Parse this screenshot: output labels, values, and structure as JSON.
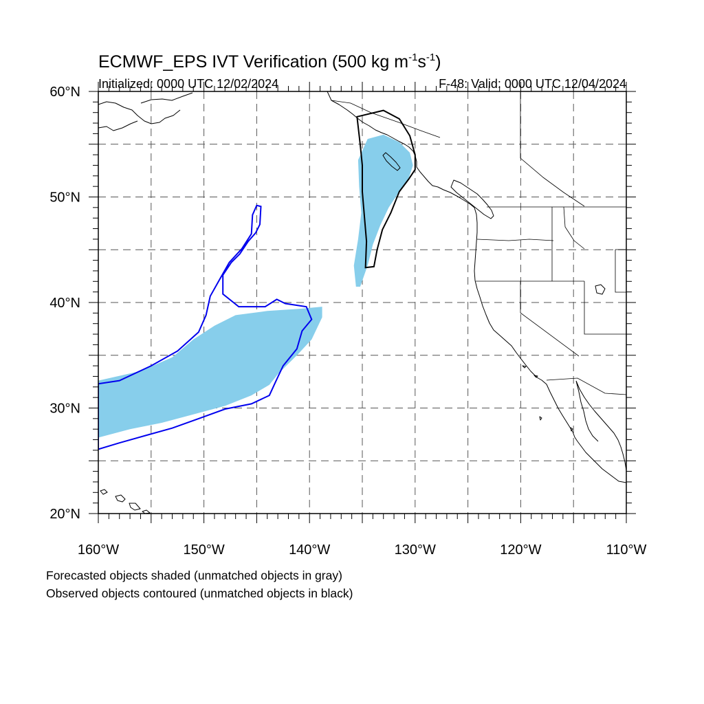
{
  "title_main": "ECMWF_EPS IVT Verification (500 kg m",
  "title_sup1": "-1",
  "title_mid": "s",
  "title_sup2": "-1",
  "title_end": ")",
  "initialized": "Initialized: 0000 UTC 12/02/2024",
  "valid": "F-48: Valid: 0000 UTC 12/04/2024",
  "legend_forecast": "Forecasted objects shaded (unmatched objects in gray)",
  "legend_observed": "Observed objects contoured (unmatched objects in black)",
  "colors": {
    "matched_forecast": "#87ceeb",
    "matched_observed": "#0000ee",
    "unmatched_observed": "#000000",
    "grid": "#555555"
  },
  "map": {
    "lon_range": [
      -160,
      -110
    ],
    "lat_range": [
      20,
      60
    ],
    "lon_ticks": [
      {
        "value": -160,
        "label": "160°W"
      },
      {
        "value": -150,
        "label": "150°W"
      },
      {
        "value": -140,
        "label": "140°W"
      },
      {
        "value": -130,
        "label": "130°W"
      },
      {
        "value": -120,
        "label": "120°W"
      },
      {
        "value": -110,
        "label": "110°W"
      }
    ],
    "lat_ticks": [
      {
        "value": 60,
        "label": "60°N"
      },
      {
        "value": 50,
        "label": "50°N"
      },
      {
        "value": 40,
        "label": "40°N"
      },
      {
        "value": 30,
        "label": "30°N"
      },
      {
        "value": 20,
        "label": "20°N"
      }
    ],
    "grid_lon": [
      -155,
      -150,
      -145,
      -140,
      -135,
      -130,
      -125,
      -120,
      -115
    ],
    "grid_lat": [
      25,
      30,
      35,
      40,
      45,
      50,
      55
    ]
  },
  "objects": {
    "forecast_shaded": [
      {
        "name": "subtropical-plume",
        "matched": true,
        "points": [
          [
            -160,
            32.6
          ],
          [
            -156,
            33.5
          ],
          [
            -153,
            34.8
          ],
          [
            -151,
            36.5
          ],
          [
            -149,
            37.8
          ],
          [
            -147,
            38.8
          ],
          [
            -144,
            39.2
          ],
          [
            -141,
            39.4
          ],
          [
            -138.8,
            39.6
          ],
          [
            -138.8,
            38.6
          ],
          [
            -139.8,
            36.5
          ],
          [
            -141,
            35.2
          ],
          [
            -142,
            34.2
          ],
          [
            -143,
            33.2
          ],
          [
            -143.8,
            32.2
          ],
          [
            -145.5,
            31.2
          ],
          [
            -148,
            30.2
          ],
          [
            -151,
            29.4
          ],
          [
            -154,
            28.6
          ],
          [
            -157,
            28
          ],
          [
            -160,
            27.2
          ]
        ]
      },
      {
        "name": "northern-plume",
        "matched": true,
        "points": [
          [
            -134.5,
            55.5
          ],
          [
            -133,
            55.9
          ],
          [
            -131.5,
            55.2
          ],
          [
            -130.5,
            54.2
          ],
          [
            -130.2,
            53
          ],
          [
            -130.6,
            51.8
          ],
          [
            -131.5,
            50.5
          ],
          [
            -132.5,
            49
          ],
          [
            -133.3,
            47.3
          ],
          [
            -134,
            45.5
          ],
          [
            -134.5,
            43.5
          ],
          [
            -135.2,
            41.5
          ],
          [
            -135.6,
            41.5
          ],
          [
            -135.8,
            43.5
          ],
          [
            -135.4,
            46
          ],
          [
            -135.1,
            48.5
          ],
          [
            -135.3,
            51
          ],
          [
            -135.4,
            53.5
          ]
        ]
      }
    ],
    "observed_contoured": [
      {
        "name": "subtropical-plume-observed",
        "matched": true,
        "points": [
          [
            -160,
            32.3
          ],
          [
            -158,
            32.6
          ],
          [
            -155,
            34
          ],
          [
            -152.5,
            35.4
          ],
          [
            -150.5,
            37.2
          ],
          [
            -149.8,
            38.8
          ],
          [
            -149.4,
            40.6
          ],
          [
            -148.5,
            42.2
          ],
          [
            -147.6,
            43.8
          ],
          [
            -146.4,
            45.1
          ],
          [
            -145.5,
            46.5
          ],
          [
            -145.4,
            48.3
          ],
          [
            -145,
            49.2
          ],
          [
            -144.6,
            49.1
          ],
          [
            -144.7,
            47.4
          ],
          [
            -145.1,
            46.6
          ],
          [
            -145.8,
            45.8
          ],
          [
            -146.6,
            44.6
          ],
          [
            -147.4,
            43.8
          ],
          [
            -148.2,
            42.6
          ],
          [
            -148.2,
            40.8
          ],
          [
            -146.7,
            39.6
          ],
          [
            -144.2,
            39.6
          ],
          [
            -143.1,
            40.3
          ],
          [
            -142.3,
            39.9
          ],
          [
            -140.3,
            39.6
          ],
          [
            -139.8,
            38.4
          ],
          [
            -140.7,
            37.3
          ],
          [
            -141.2,
            35.6
          ],
          [
            -142.5,
            34
          ],
          [
            -143.2,
            32.5
          ],
          [
            -143.8,
            31.2
          ],
          [
            -145.5,
            30.4
          ],
          [
            -148,
            29.9
          ],
          [
            -150.5,
            29
          ],
          [
            -153,
            28.1
          ],
          [
            -155.5,
            27.4
          ],
          [
            -158,
            26.7
          ],
          [
            -160,
            26.1
          ]
        ]
      },
      {
        "name": "northern-plume-observed",
        "matched": false,
        "points": [
          [
            -135.5,
            57.6
          ],
          [
            -133,
            58.2
          ],
          [
            -131.5,
            57.4
          ],
          [
            -130.5,
            55.8
          ],
          [
            -130,
            54
          ],
          [
            -130,
            52.6
          ],
          [
            -130.6,
            51.7
          ],
          [
            -131.5,
            50.5
          ],
          [
            -132.3,
            48.5
          ],
          [
            -133.1,
            46.9
          ],
          [
            -133.6,
            45
          ],
          [
            -133.9,
            43.4
          ],
          [
            -134.7,
            43.3
          ],
          [
            -134.6,
            45.8
          ],
          [
            -134.8,
            48.1
          ],
          [
            -135,
            50.5
          ],
          [
            -135,
            53
          ],
          [
            -135.2,
            55
          ]
        ]
      }
    ]
  }
}
